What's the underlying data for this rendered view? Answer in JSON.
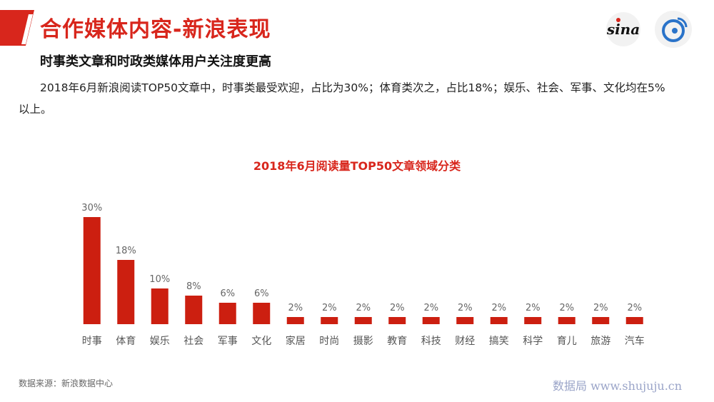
{
  "header": {
    "title": "合作媒体内容-新浪表现",
    "accent_color": "#d8261c",
    "logos": [
      "sina-logo",
      "weibo-logo"
    ]
  },
  "subtitle": "时事类文章和时政类媒体用户关注度更高",
  "body_text": "2018年6月新浪阅读TOP50文章中，时事类最受欢迎，占比为30%；体育类次之，占比18%；娱乐、社会、军事、文化均在5%以上。",
  "chart_data": {
    "type": "bar",
    "title": "2018年6月阅读量TOP50文章领域分类",
    "categories": [
      "时事",
      "体育",
      "娱乐",
      "社会",
      "军事",
      "文化",
      "家居",
      "时尚",
      "摄影",
      "教育",
      "科技",
      "财经",
      "搞笑",
      "科学",
      "育儿",
      "旅游",
      "汽车"
    ],
    "values": [
      30,
      18,
      10,
      8,
      6,
      6,
      2,
      2,
      2,
      2,
      2,
      2,
      2,
      2,
      2,
      2,
      2
    ],
    "value_labels": [
      "30%",
      "18%",
      "10%",
      "8%",
      "6%",
      "6%",
      "2%",
      "2%",
      "2%",
      "2%",
      "2%",
      "2%",
      "2%",
      "2%",
      "2%",
      "2%",
      "2%"
    ],
    "ylim": [
      0,
      30
    ],
    "bar_color": "#cc1f10",
    "grid": false
  },
  "footer": {
    "source": "数据来源：新浪数据中心",
    "watermark": "数据局  www.shujuju.cn"
  }
}
